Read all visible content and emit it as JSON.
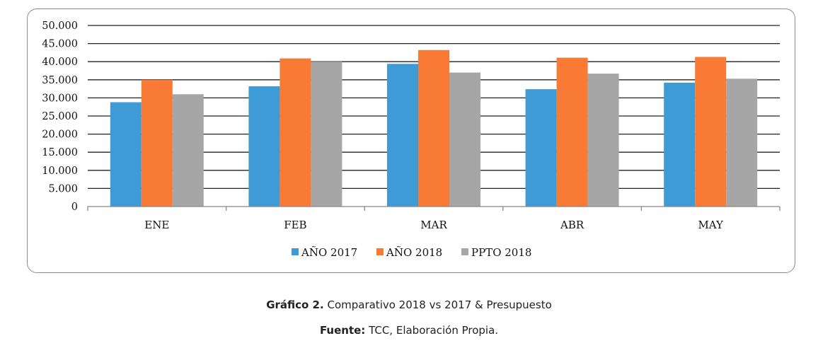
{
  "chart_data": {
    "type": "bar",
    "categories": [
      "ENE",
      "FEB",
      "MAR",
      "ABR",
      "MAY"
    ],
    "series": [
      {
        "name": "AÑO 2017",
        "color": "#3f9bd6",
        "values": [
          28800,
          33200,
          39400,
          32400,
          34200
        ]
      },
      {
        "name": "AÑO 2018",
        "color": "#f97a35",
        "values": [
          35000,
          40900,
          43200,
          41100,
          41300
        ]
      },
      {
        "name": "PPTO 2018",
        "color": "#a6a6a6",
        "values": [
          31000,
          40000,
          37000,
          36700,
          35300
        ]
      }
    ],
    "yticks": [
      "0",
      "5.000",
      "10.000",
      "15.000",
      "20.000",
      "25.000",
      "30.000",
      "35.000",
      "40.000",
      "45.000",
      "50.000"
    ],
    "ylim": [
      0,
      50000
    ],
    "grid": true,
    "legend_position": "bottom"
  },
  "caption": {
    "label": "Gráfico 2.",
    "text": " Comparativo 2018 vs 2017 & Presupuesto"
  },
  "source": {
    "label": "Fuente:",
    "text": " TCC, Elaboración Propia."
  }
}
